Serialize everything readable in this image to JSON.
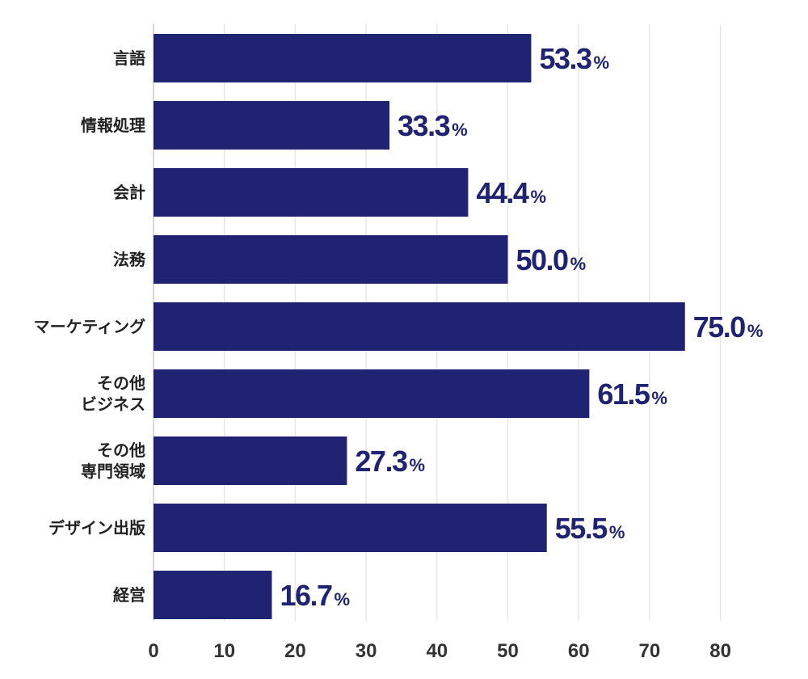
{
  "chart_data": {
    "type": "bar",
    "orientation": "horizontal",
    "categories": [
      [
        "言語"
      ],
      [
        "情報処理"
      ],
      [
        "会計"
      ],
      [
        "法務"
      ],
      [
        "マーケティング"
      ],
      [
        "その他",
        "ビジネス"
      ],
      [
        "その他",
        "専門領域"
      ],
      [
        "デザイン出版"
      ],
      [
        "経営"
      ]
    ],
    "values": [
      53.3,
      33.3,
      44.4,
      50.0,
      75.0,
      61.5,
      27.3,
      55.5,
      16.7
    ],
    "value_labels": [
      "53.3",
      "33.3",
      "44.4",
      "50.0",
      "75.0",
      "61.5",
      "27.3",
      "55.5",
      "16.7"
    ],
    "value_unit": "%",
    "xlim": [
      0,
      80
    ],
    "xticks": [
      0,
      10,
      20,
      30,
      40,
      50,
      60,
      70,
      80
    ],
    "grid": true,
    "title": "",
    "xlabel": "",
    "ylabel": "",
    "colors": {
      "bar": "#1f2371",
      "value_label": "#1f2371",
      "grid": "#e6e6e6",
      "axis": "#cccccc"
    }
  }
}
